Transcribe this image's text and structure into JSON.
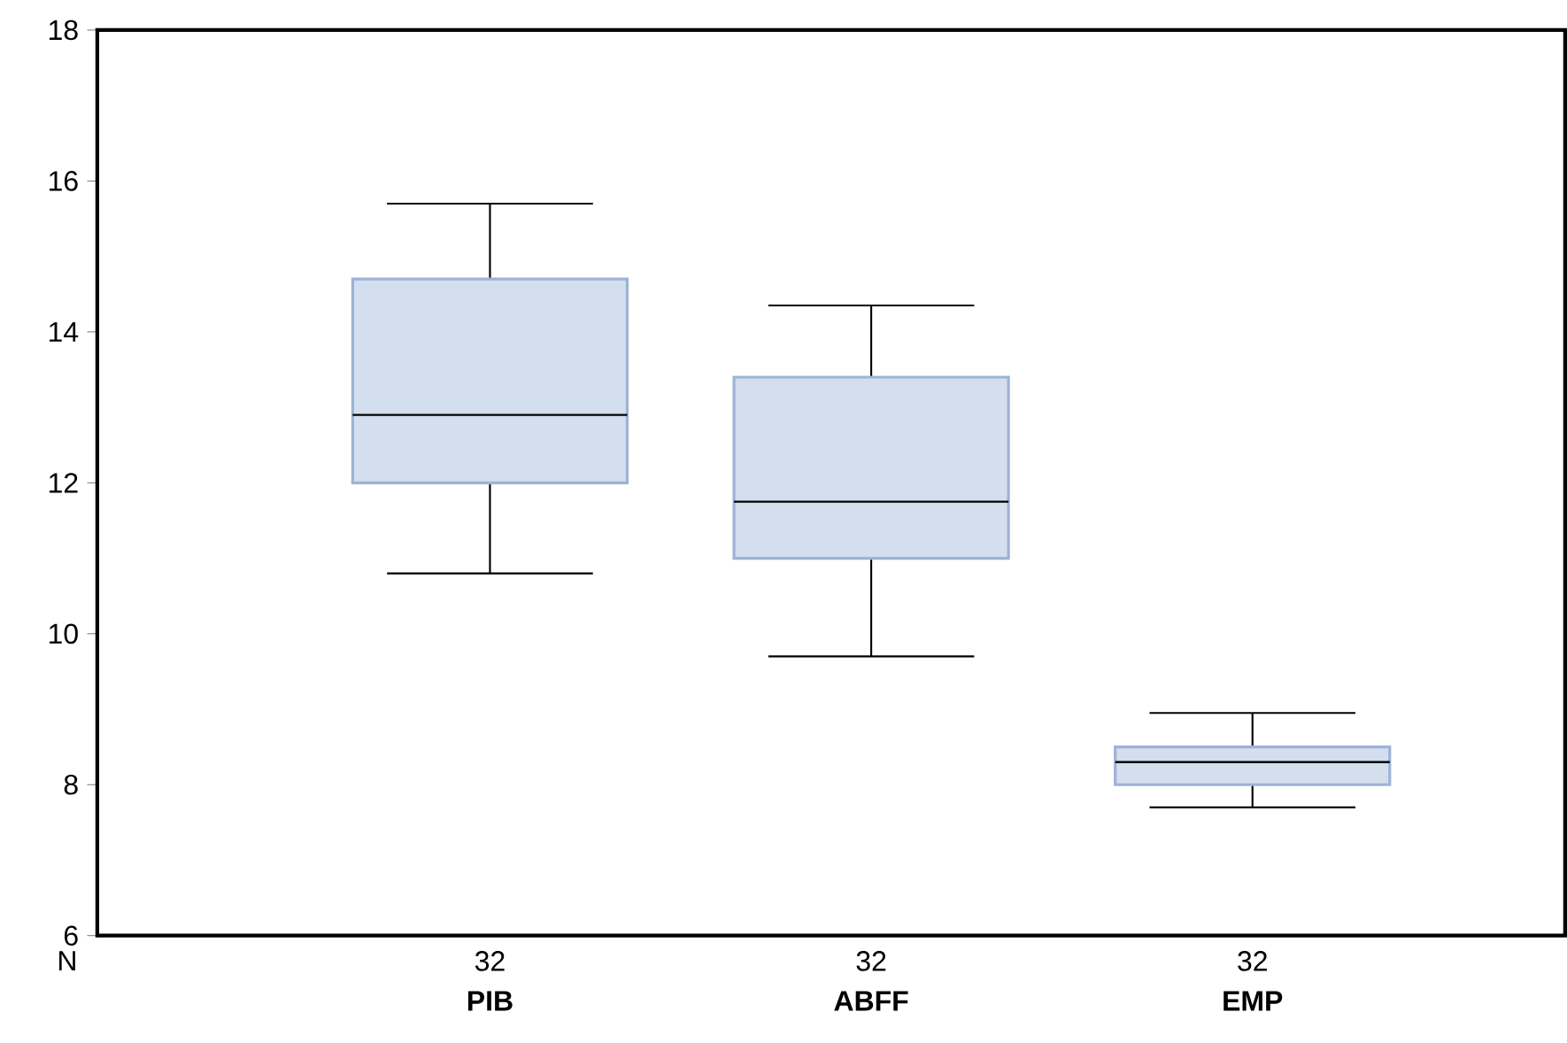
{
  "chart_data": {
    "type": "box",
    "categories": [
      "PIB",
      "ABFF",
      "EMP"
    ],
    "boxes": [
      {
        "low": 10.8,
        "q1": 12.0,
        "median": 12.9,
        "q3": 14.7,
        "high": 15.7
      },
      {
        "low": 9.7,
        "q1": 11.0,
        "median": 11.75,
        "q3": 13.4,
        "high": 14.35
      },
      {
        "low": 7.7,
        "q1": 8.0,
        "median": 8.3,
        "q3": 8.5,
        "high": 8.95
      }
    ],
    "color": "#d3deee",
    "ylim": [
      6,
      18
    ],
    "yticks": [
      6,
      8,
      10,
      12,
      14,
      16,
      18
    ],
    "grid": false,
    "annotations": [
      "N",
      "32",
      "32",
      "32"
    ]
  }
}
